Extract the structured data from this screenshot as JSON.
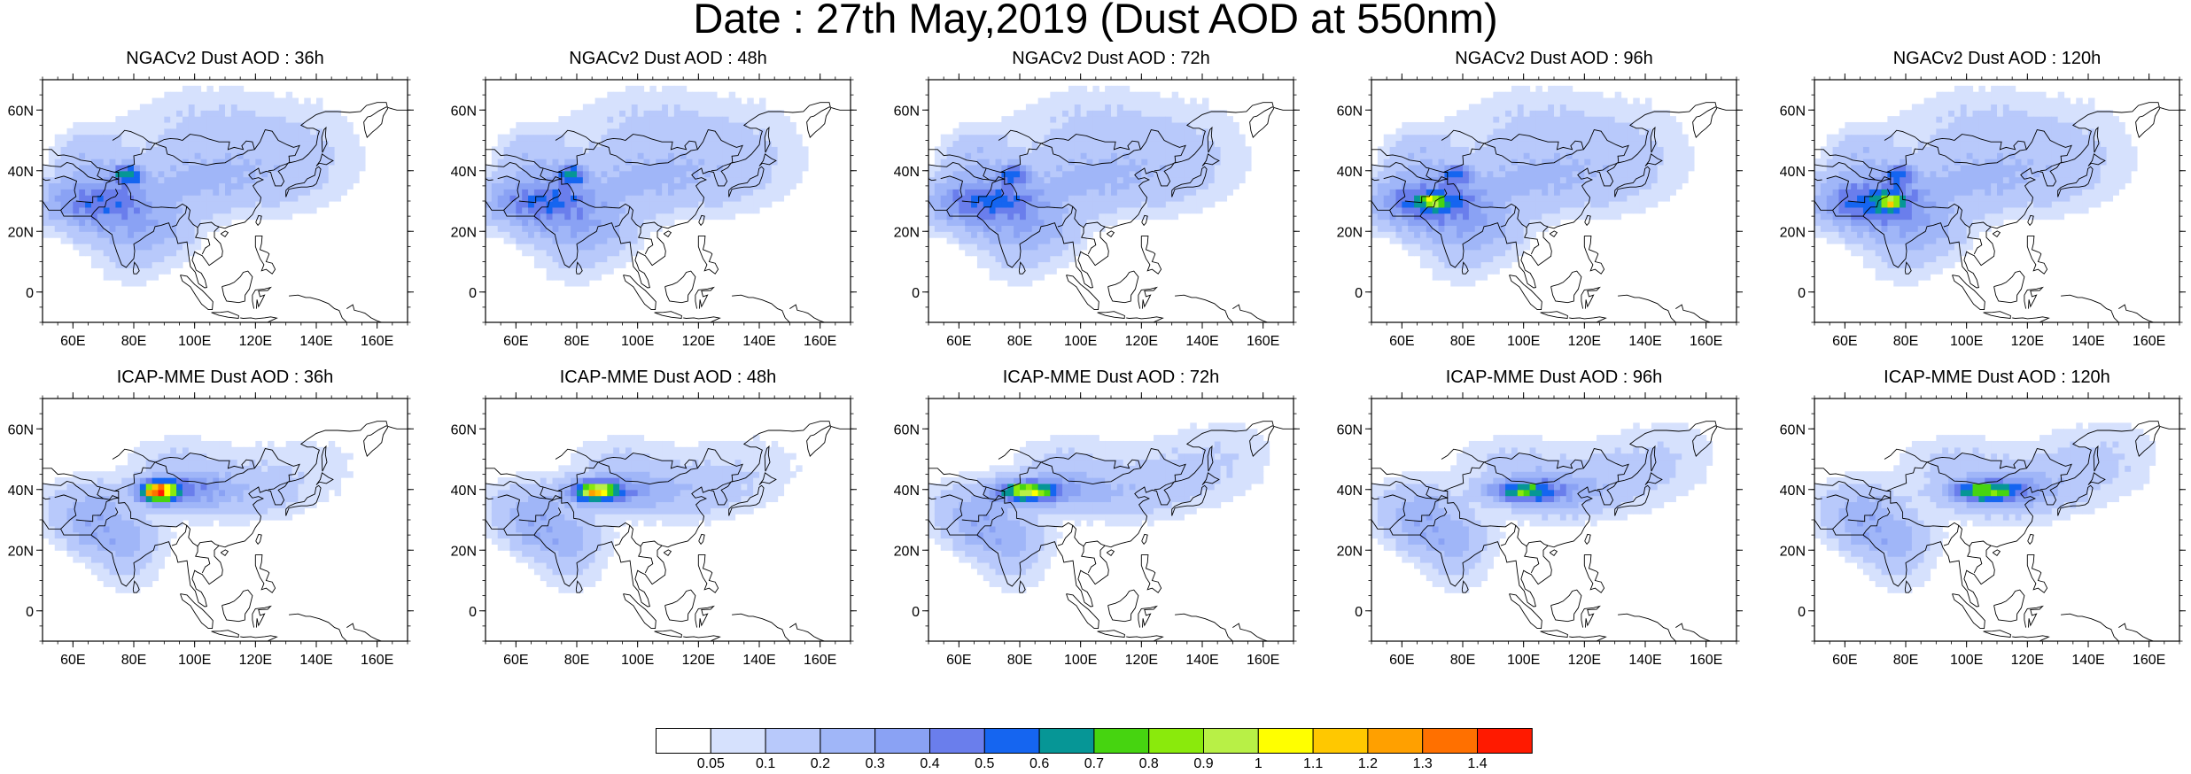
{
  "title": "Date : 27th May,2019 (Dust AOD at 550nm)",
  "panels": [
    {
      "title": "NGACv2 Dust AOD : 36h",
      "model": "NGACv2",
      "lead": "36h"
    },
    {
      "title": "NGACv2 Dust AOD : 48h",
      "model": "NGACv2",
      "lead": "48h"
    },
    {
      "title": "NGACv2 Dust AOD : 72h",
      "model": "NGACv2",
      "lead": "72h"
    },
    {
      "title": "NGACv2 Dust AOD : 96h",
      "model": "NGACv2",
      "lead": "96h"
    },
    {
      "title": "NGACv2 Dust AOD : 120h",
      "model": "NGACv2",
      "lead": "120h"
    },
    {
      "title": "ICAP-MME Dust AOD : 36h",
      "model": "ICAP-MME",
      "lead": "36h"
    },
    {
      "title": "ICAP-MME Dust AOD : 48h",
      "model": "ICAP-MME",
      "lead": "48h"
    },
    {
      "title": "ICAP-MME Dust AOD : 72h",
      "model": "ICAP-MME",
      "lead": "72h"
    },
    {
      "title": "ICAP-MME Dust AOD : 96h",
      "model": "ICAP-MME",
      "lead": "96h"
    },
    {
      "title": "ICAP-MME Dust AOD : 120h",
      "model": "ICAP-MME",
      "lead": "120h"
    }
  ],
  "map": {
    "lon_range": [
      50,
      170
    ],
    "lat_range": [
      -10,
      70
    ],
    "lon_ticks": [
      60,
      80,
      100,
      120,
      140,
      160
    ],
    "lon_tick_labels": [
      "60E",
      "80E",
      "100E",
      "120E",
      "140E",
      "160E"
    ],
    "lat_ticks": [
      0,
      20,
      40,
      60
    ],
    "lat_tick_labels": [
      "0",
      "20N",
      "40N",
      "60N"
    ]
  },
  "colorbar": {
    "labels": [
      "0.05",
      "0.1",
      "0.2",
      "0.3",
      "0.4",
      "0.5",
      "0.6",
      "0.7",
      "0.8",
      "0.9",
      "1",
      "1.1",
      "1.2",
      "1.3",
      "1.4"
    ],
    "colors": [
      "#ffffff",
      "#d6e1fd",
      "#b8c9fb",
      "#a0b6f8",
      "#8aa2f4",
      "#6a7eec",
      "#1565f0",
      "#069696",
      "#46d410",
      "#8aea0c",
      "#b8f046",
      "#ffff00",
      "#ffc800",
      "#ffa000",
      "#ff7000",
      "#ff1a00"
    ]
  }
}
